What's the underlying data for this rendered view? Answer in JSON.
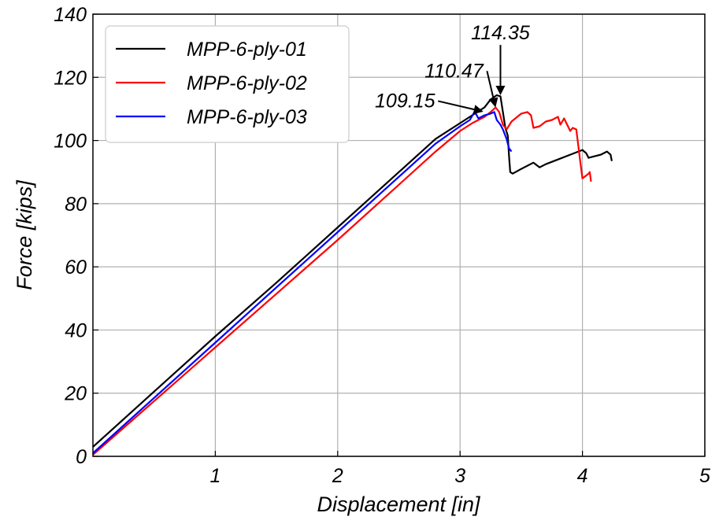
{
  "chart_data": {
    "type": "line",
    "title": "",
    "xlabel": "Displacement [in]",
    "ylabel": "Force [kips]",
    "xlim": [
      0,
      5
    ],
    "ylim": [
      0,
      140
    ],
    "xticks": [
      1,
      2,
      3,
      4,
      5
    ],
    "yticks": [
      0,
      20,
      40,
      60,
      80,
      100,
      120,
      140
    ],
    "grid": true,
    "legend_position": "top-left",
    "series": [
      {
        "name": "MPP-6-ply-01",
        "color": "#000000",
        "x": [
          0,
          0.5,
          1.0,
          1.5,
          2.0,
          2.5,
          2.8,
          3.0,
          3.1,
          3.2,
          3.25,
          3.3,
          3.33,
          3.35,
          3.37,
          3.39,
          3.4,
          3.41,
          3.43,
          3.5,
          3.6,
          3.65,
          3.7,
          3.8,
          3.9,
          4.0,
          4.03,
          4.05,
          4.1,
          4.15,
          4.2,
          4.23,
          4.24
        ],
        "y": [
          3,
          20.5,
          38,
          55,
          72.5,
          90,
          100.5,
          105.5,
          108,
          110.5,
          113,
          114.35,
          114,
          109,
          104,
          101.5,
          95,
          90,
          89.5,
          91,
          93,
          91.5,
          92.5,
          94,
          95.5,
          97,
          96,
          94.5,
          95,
          95.5,
          96.5,
          95.5,
          93.5
        ]
      },
      {
        "name": "MPP-6-ply-02",
        "color": "#ff0000",
        "x": [
          0,
          0.5,
          1.0,
          1.5,
          2.0,
          2.5,
          2.8,
          3.0,
          3.1,
          3.2,
          3.25,
          3.29,
          3.32,
          3.35,
          3.38,
          3.42,
          3.5,
          3.55,
          3.58,
          3.6,
          3.65,
          3.7,
          3.75,
          3.8,
          3.82,
          3.85,
          3.9,
          3.92,
          3.95,
          3.98,
          4.0,
          4.05,
          4.06,
          4.07
        ],
        "y": [
          0.5,
          17.5,
          34.5,
          51.5,
          68.5,
          86,
          96.5,
          103,
          105.5,
          107.5,
          109,
          110.47,
          109,
          105,
          103.5,
          106,
          108.5,
          109,
          108,
          104,
          104.5,
          106,
          106.5,
          107.5,
          105,
          107,
          103,
          104,
          103.5,
          94,
          88,
          89.5,
          90,
          87
        ]
      },
      {
        "name": "MPP-6-ply-03",
        "color": "#0000ff",
        "x": [
          0,
          0.5,
          1.0,
          1.5,
          2.0,
          2.5,
          2.8,
          3.0,
          3.08,
          3.12,
          3.15,
          3.2,
          3.25,
          3.28,
          3.3,
          3.33,
          3.35,
          3.38,
          3.4,
          3.42
        ],
        "y": [
          1,
          18.5,
          36,
          53.5,
          71,
          88.5,
          99,
          104.5,
          106.5,
          109.15,
          107,
          108,
          108.5,
          109,
          106.5,
          105,
          103.5,
          100.5,
          97.5,
          96.5
        ]
      }
    ],
    "annotations": [
      {
        "text": "114.35",
        "x": 3.33,
        "y": 114.35,
        "text_x": 3.33,
        "text_y": 132
      },
      {
        "text": "110.47",
        "x": 3.29,
        "y": 110.47,
        "text_x": 2.95,
        "text_y": 120
      },
      {
        "text": "109.15",
        "x": 3.19,
        "y": 109.15,
        "text_x": 2.55,
        "text_y": 110.5
      }
    ]
  }
}
